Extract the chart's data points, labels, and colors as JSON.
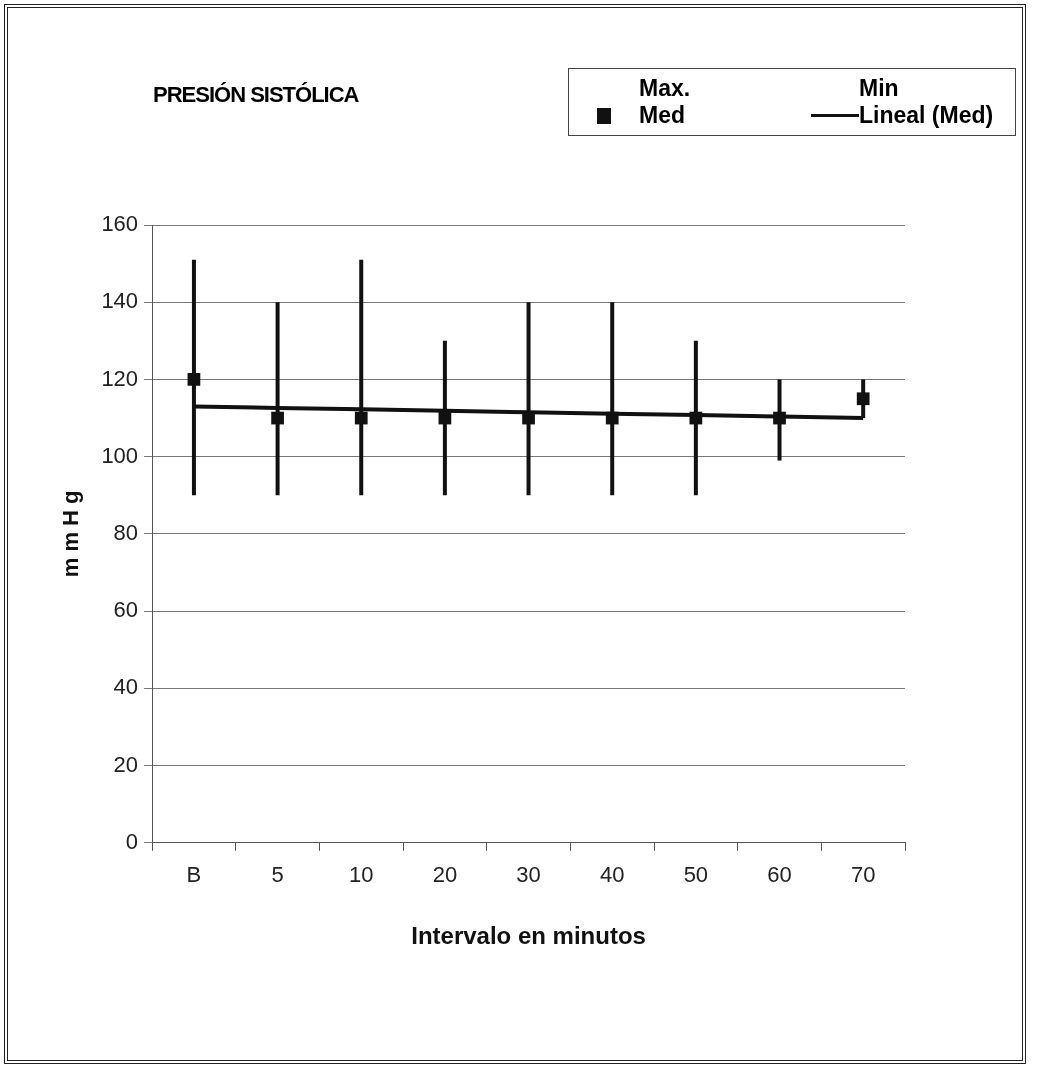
{
  "chart_data": {
    "type": "line",
    "title": "PRESIÓN SISTÓLICA",
    "xlabel": "Intervalo en minutos",
    "ylabel": "m m H g",
    "categories": [
      "B",
      "5",
      "10",
      "20",
      "30",
      "40",
      "50",
      "60",
      "70"
    ],
    "ylim": [
      0,
      160
    ],
    "yticks": [
      0,
      20,
      40,
      60,
      80,
      100,
      120,
      140,
      160
    ],
    "grid": "y",
    "legend": "top right",
    "annotations": [
      "Max.",
      "Min"
    ],
    "series": [
      {
        "name": "Med",
        "type": "scatter",
        "marker": "square",
        "color": "#111111",
        "values": [
          120,
          110,
          110,
          110,
          110,
          110,
          110,
          110,
          115
        ],
        "errors": [
          [
            90,
            151
          ],
          [
            90,
            140
          ],
          [
            90,
            151
          ],
          [
            90,
            130
          ],
          [
            90,
            140
          ],
          [
            90,
            140
          ],
          [
            90,
            130
          ],
          [
            99,
            120
          ],
          [
            110,
            120
          ]
        ]
      },
      {
        "name": "Lineal (Med)",
        "type": "line",
        "marker": "none",
        "line_style": "solid",
        "color": "#111111",
        "values": [
          113,
          112.6,
          112.3,
          111.9,
          111.5,
          111.1,
          110.8,
          110.4,
          110
        ]
      }
    ]
  }
}
